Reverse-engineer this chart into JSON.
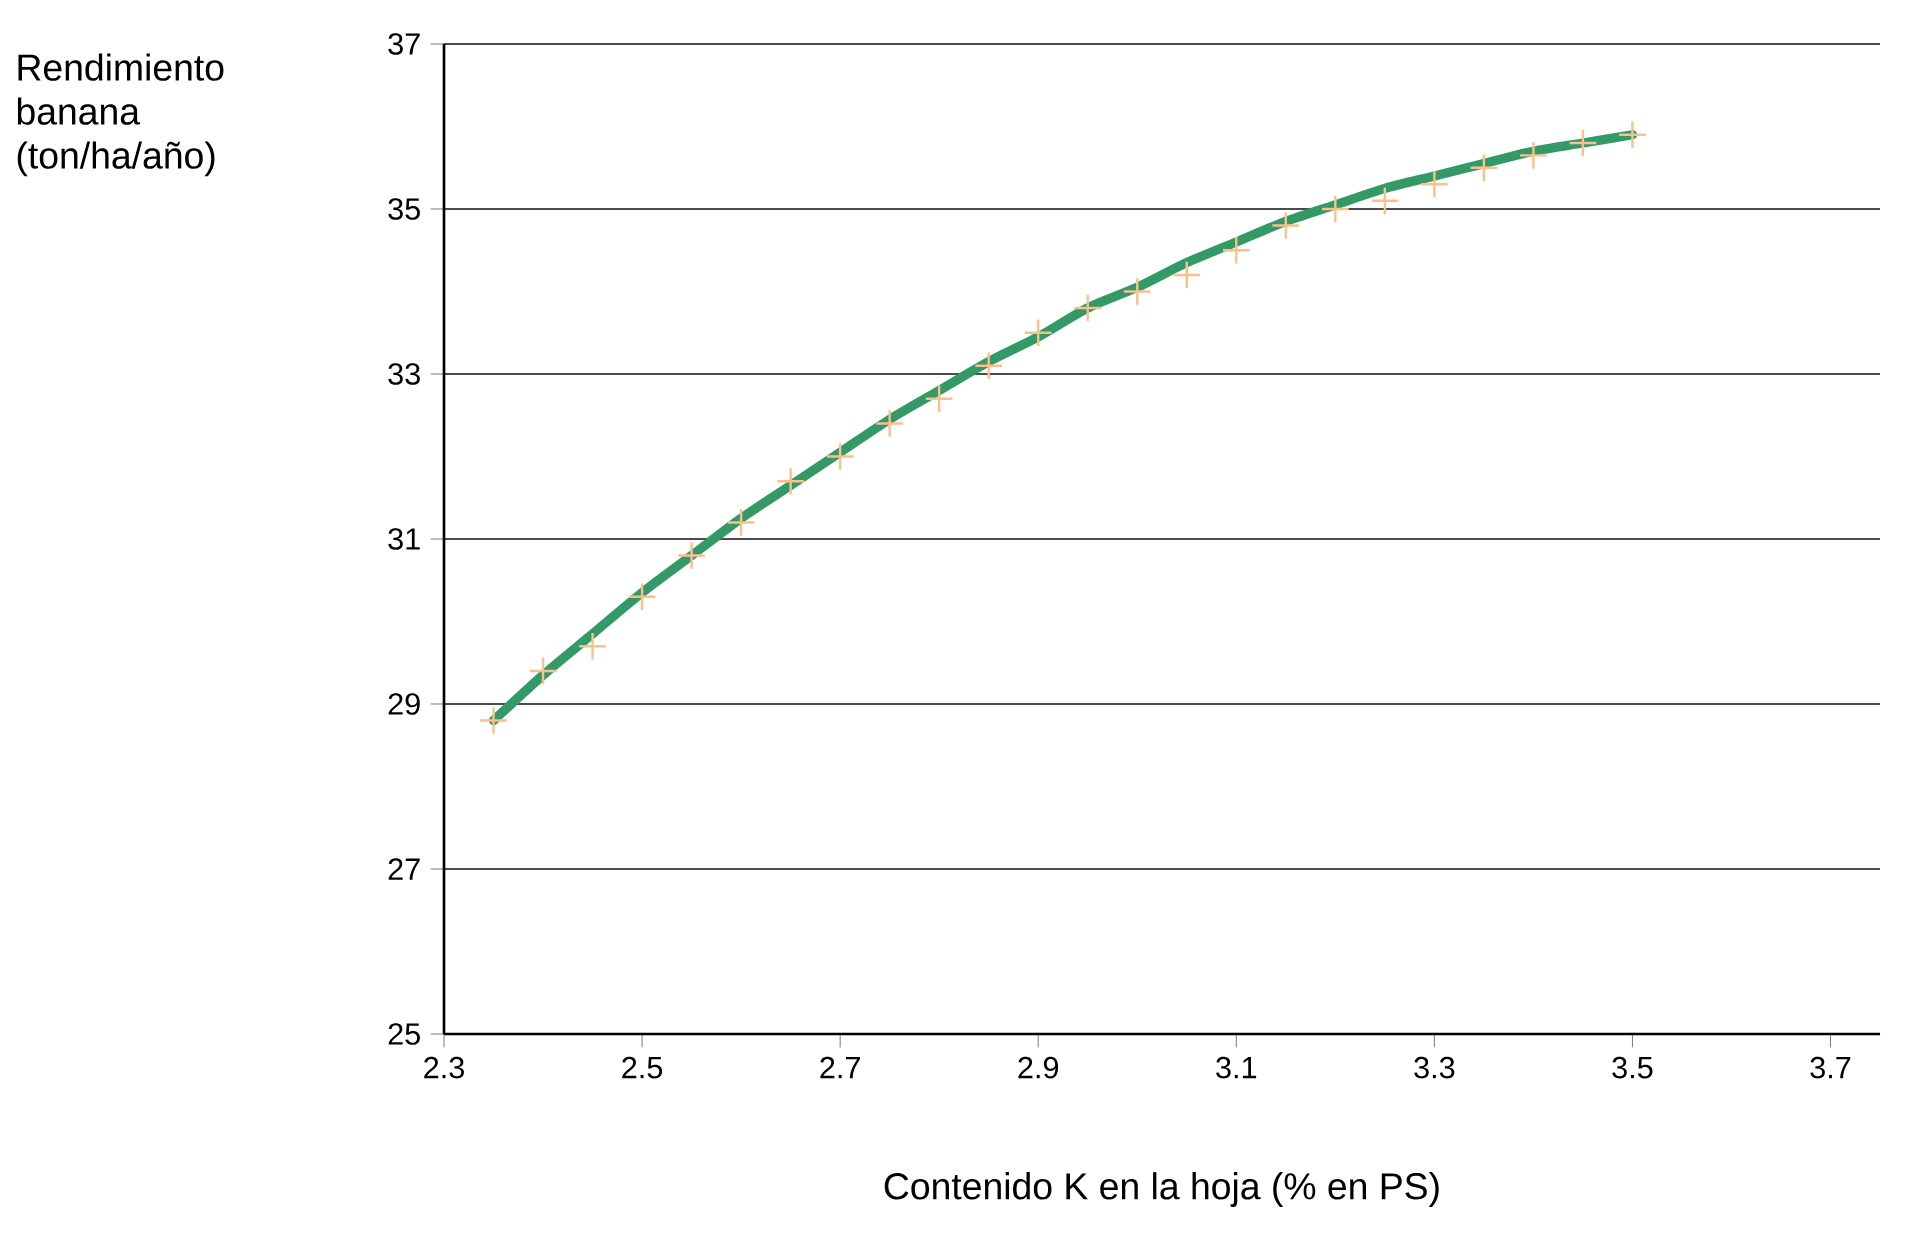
{
  "chart_data": {
    "type": "line",
    "xlabel": "Contenido K en la hoja (% en PS)",
    "ylabel": "Rendimiento banana (ton/ha/año)",
    "xlim": [
      2.3,
      3.75
    ],
    "ylim": [
      25,
      37
    ],
    "xticks": [
      2.3,
      2.5,
      2.7,
      2.9,
      3.1,
      3.3,
      3.5,
      3.7
    ],
    "yticks": [
      25,
      27,
      29,
      31,
      33,
      35,
      37
    ],
    "grid": "y",
    "series": [
      {
        "type": "scatter",
        "marker": "cross",
        "color": "#fbc08c",
        "x": [
          2.35,
          2.4,
          2.45,
          2.5,
          2.55,
          2.6,
          2.65,
          2.7,
          2.75,
          2.8,
          2.85,
          2.9,
          2.95,
          3.0,
          3.05,
          3.1,
          3.15,
          3.2,
          3.25,
          3.3,
          3.35,
          3.4,
          3.45,
          3.5
        ],
        "values": [
          28.8,
          29.4,
          29.7,
          30.3,
          30.8,
          31.2,
          31.7,
          32.0,
          32.4,
          32.7,
          33.1,
          33.5,
          33.8,
          34.0,
          34.2,
          34.5,
          34.8,
          35.0,
          35.1,
          35.3,
          35.5,
          35.65,
          35.8,
          35.9
        ]
      },
      {
        "color": "#339966",
        "x": [
          2.35,
          2.4,
          2.45,
          2.5,
          2.55,
          2.6,
          2.65,
          2.7,
          2.75,
          2.8,
          2.85,
          2.9,
          2.95,
          3.0,
          3.05,
          3.1,
          3.15,
          3.2,
          3.25,
          3.3,
          3.35,
          3.4,
          3.45,
          3.5
        ],
        "values": [
          28.8,
          29.35,
          29.85,
          30.35,
          30.8,
          31.25,
          31.65,
          32.05,
          32.45,
          32.8,
          33.15,
          33.45,
          33.8,
          34.05,
          34.35,
          34.6,
          34.85,
          35.05,
          35.25,
          35.4,
          35.55,
          35.7,
          35.8,
          35.9
        ]
      }
    ]
  }
}
